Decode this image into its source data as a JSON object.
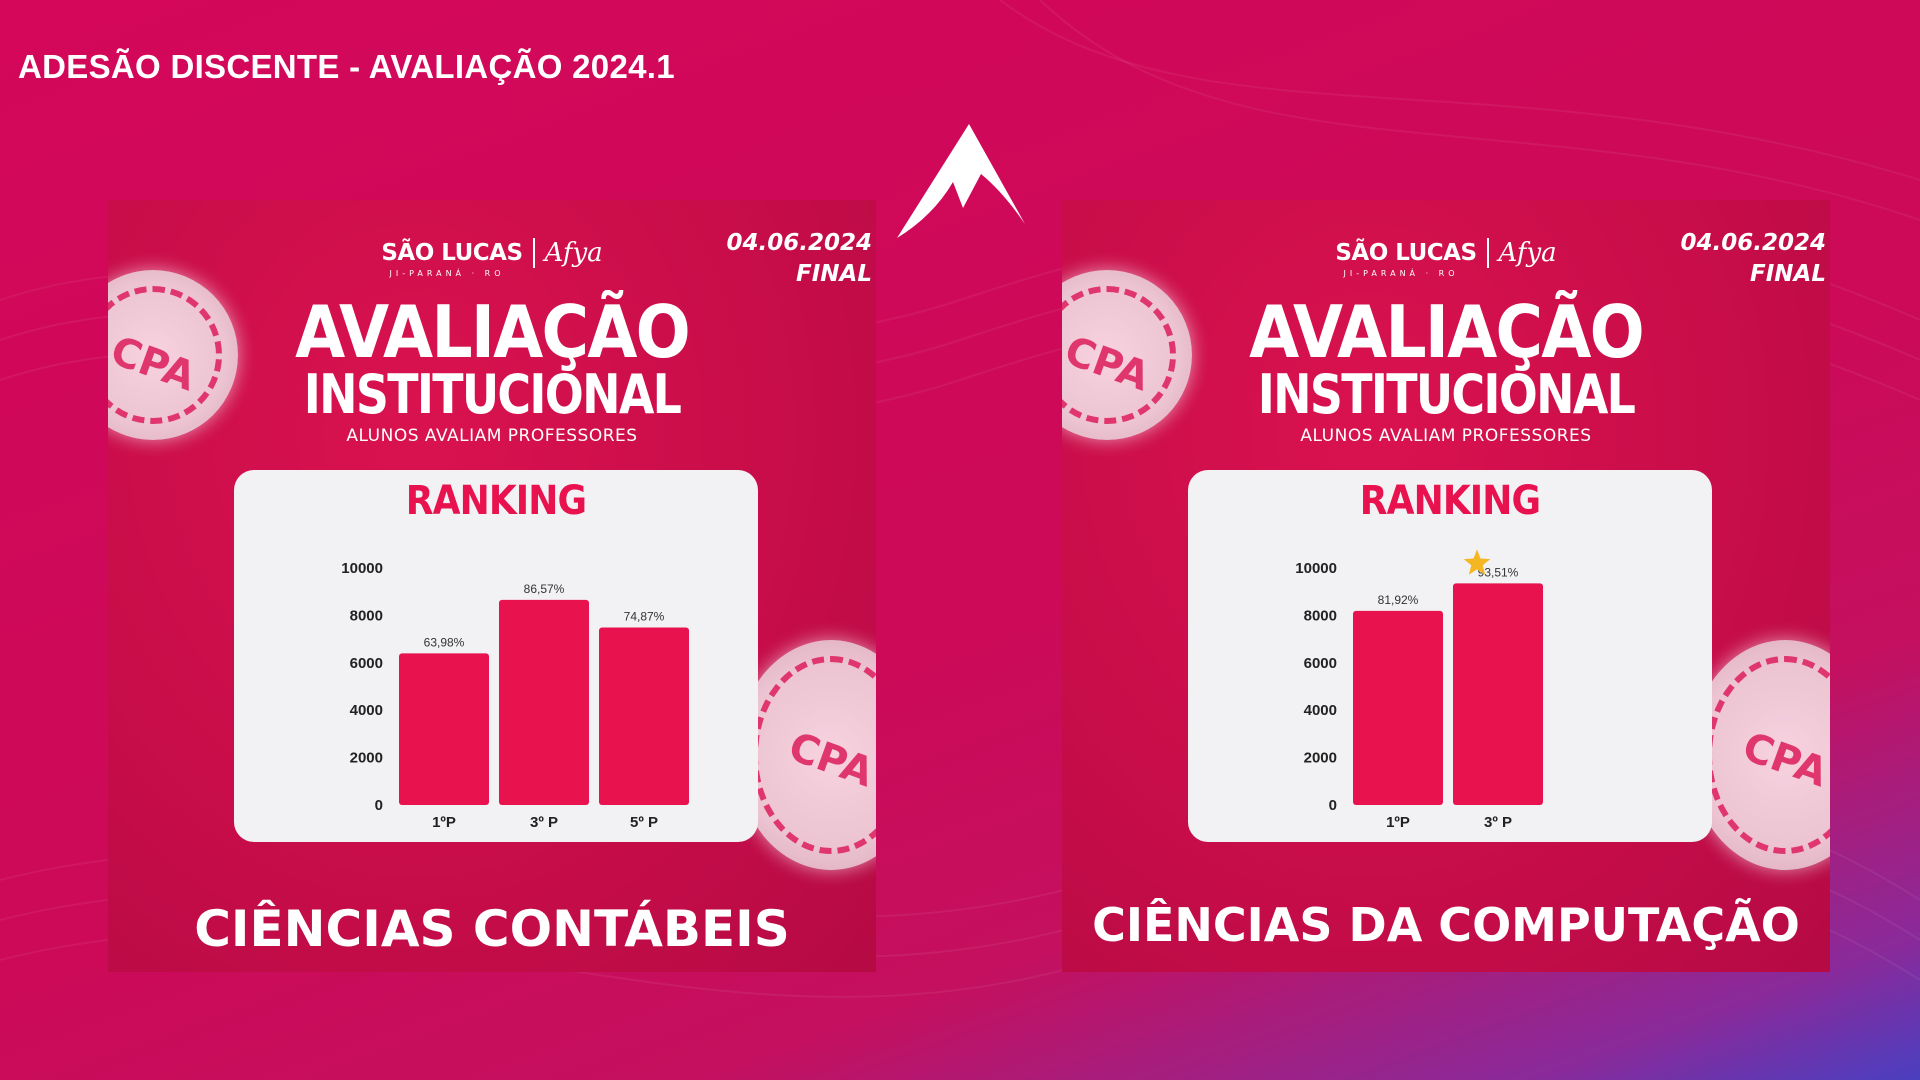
{
  "page": {
    "title": "ADESÃO DISCENTE - AVALIAÇÃO 2024.1",
    "logo_icon": "afya-a-logo-icon"
  },
  "cards": [
    {
      "brand": {
        "name": "SÃO LUCAS",
        "location": "JI-PARANÁ · RO",
        "partner": "Afya"
      },
      "date": "04.06.2024",
      "status": "FINAL",
      "seal_text": "CPA",
      "hero": {
        "title": "AVALIAÇÃO",
        "subtitle": "INSTITUCIONAL",
        "caption": "ALUNOS AVALIAM PROFESSORES"
      },
      "ranking_label": "RANKING",
      "course": "CIÊNCIAS CONTÁBEIS"
    },
    {
      "brand": {
        "name": "SÃO LUCAS",
        "location": "JI-PARANÁ · RO",
        "partner": "Afya"
      },
      "date": "04.06.2024",
      "status": "FINAL",
      "seal_text": "CPA",
      "hero": {
        "title": "AVALIAÇÃO",
        "subtitle": "INSTITUCIONAL",
        "caption": "ALUNOS AVALIAM PROFESSORES"
      },
      "ranking_label": "RANKING",
      "course": "CIÊNCIAS DA COMPUTAÇÃO"
    }
  ],
  "chart_data": [
    {
      "type": "bar",
      "title": "RANKING",
      "categories": [
        "1ºP",
        "3º P",
        "5º P"
      ],
      "values": [
        6398,
        8657,
        7487
      ],
      "data_labels": [
        "63,98%",
        "86,57%",
        "74,87%"
      ],
      "ylim": [
        0,
        10000
      ],
      "yticks": [
        0,
        2000,
        4000,
        6000,
        8000,
        10000
      ],
      "bar_color": "#e8124f",
      "grid": false,
      "highlight_star_index": null
    },
    {
      "type": "bar",
      "title": "RANKING",
      "categories": [
        "1ºP",
        "3º P"
      ],
      "values": [
        8192,
        9351
      ],
      "data_labels": [
        "81,92%",
        "93,51%"
      ],
      "ylim": [
        0,
        10000
      ],
      "yticks": [
        0,
        2000,
        4000,
        6000,
        8000,
        10000
      ],
      "bar_color": "#e8124f",
      "grid": false,
      "highlight_star_index": 1
    }
  ]
}
